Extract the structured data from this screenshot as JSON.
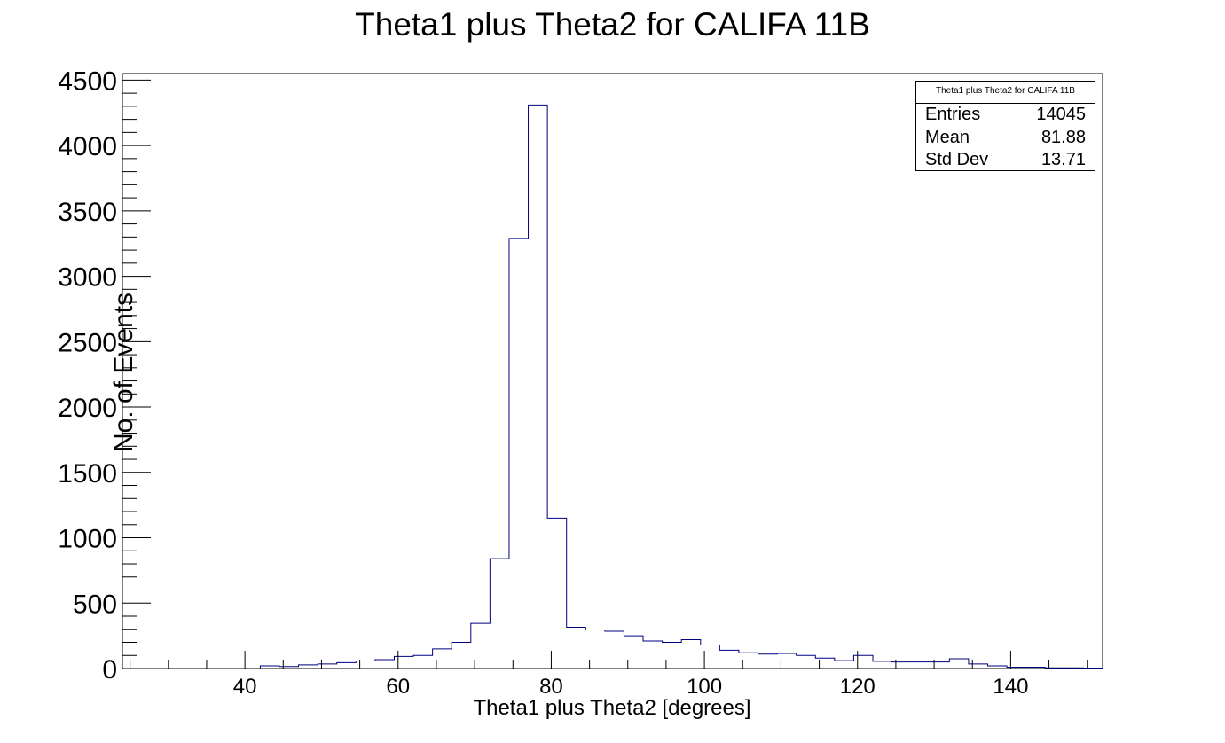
{
  "chart_data": {
    "type": "bar",
    "title": "Theta1 plus Theta2 for CALIFA 11B",
    "xlabel": "Theta1 plus Theta2 [degrees]",
    "ylabel": "No. of Events",
    "xlim": [
      24,
      152
    ],
    "ylim": [
      0,
      4550
    ],
    "bin_width": 2.5,
    "bin_start": 42,
    "values": [
      20,
      15,
      28,
      35,
      45,
      58,
      68,
      92,
      100,
      150,
      200,
      345,
      840,
      3290,
      4310,
      1150,
      315,
      295,
      285,
      250,
      210,
      200,
      220,
      180,
      140,
      120,
      110,
      115,
      100,
      80,
      60,
      100,
      55,
      50,
      50,
      50,
      75,
      35,
      20,
      10,
      10,
      5,
      5,
      3
    ],
    "x_ticks": [
      40,
      60,
      80,
      100,
      120,
      140
    ],
    "y_ticks": [
      0,
      500,
      1000,
      1500,
      2000,
      2500,
      3000,
      3500,
      4000,
      4500
    ],
    "grid": false,
    "line_color": "#000080",
    "stats": {
      "title": "Theta1 plus Theta2 for CALIFA 11B",
      "rows": [
        {
          "label": "Entries",
          "value": "14045"
        },
        {
          "label": "Mean",
          "value": "81.88"
        },
        {
          "label": "Std Dev",
          "value": "13.71"
        }
      ]
    }
  }
}
